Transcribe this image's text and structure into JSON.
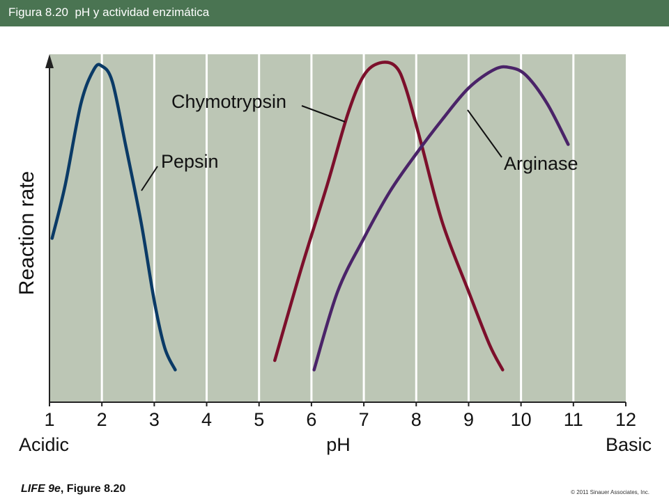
{
  "header": {
    "title": "Figura 8.20  pH y actividad enzimática",
    "color": "#4a7452"
  },
  "footer": {
    "source_italic": "LIFE 9e",
    "source_rest": ", Figure 8.20",
    "copyright": "© 2011 Sinauer Associates, Inc."
  },
  "chart_data": {
    "type": "line",
    "xlabel": "pH",
    "ylabel": "Reaction rate",
    "x_ticks": [
      "1",
      "2",
      "3",
      "4",
      "5",
      "6",
      "7",
      "8",
      "9",
      "10",
      "11",
      "12"
    ],
    "xlim": [
      1,
      12
    ],
    "x_end_labels": {
      "left": "Acidic",
      "right": "Basic"
    },
    "grid": true,
    "background": "#bcc6b5",
    "series": [
      {
        "name": "Pepsin",
        "color": "#0a3a66",
        "x": [
          1.05,
          1.3,
          1.6,
          1.85,
          2.0,
          2.2,
          2.45,
          2.75,
          3.0,
          3.2,
          3.4
        ],
        "y": [
          0.45,
          0.62,
          0.88,
          0.99,
          1.0,
          0.95,
          0.75,
          0.5,
          0.25,
          0.1,
          0.03
        ]
      },
      {
        "name": "Chymotrypsin",
        "color": "#7c0f2b",
        "x": [
          5.3,
          5.8,
          6.3,
          6.7,
          7.0,
          7.3,
          7.6,
          7.8,
          8.1,
          8.5,
          9.0,
          9.4,
          9.65
        ],
        "y": [
          0.06,
          0.35,
          0.62,
          0.85,
          0.97,
          1.01,
          1.0,
          0.93,
          0.75,
          0.5,
          0.28,
          0.11,
          0.03
        ]
      },
      {
        "name": "Arginase",
        "color": "#4a2368",
        "x": [
          6.05,
          6.5,
          7.0,
          7.5,
          8.0,
          8.5,
          9.0,
          9.5,
          9.8,
          10.1,
          10.5,
          10.9
        ],
        "y": [
          0.03,
          0.28,
          0.45,
          0.6,
          0.72,
          0.83,
          0.93,
          0.99,
          0.995,
          0.97,
          0.88,
          0.75
        ]
      }
    ],
    "annotations": [
      {
        "text": "Pepsin",
        "series": "Pepsin"
      },
      {
        "text": "Chymotrypsin",
        "series": "Chymotrypsin"
      },
      {
        "text": "Arginase",
        "series": "Arginase"
      }
    ]
  }
}
